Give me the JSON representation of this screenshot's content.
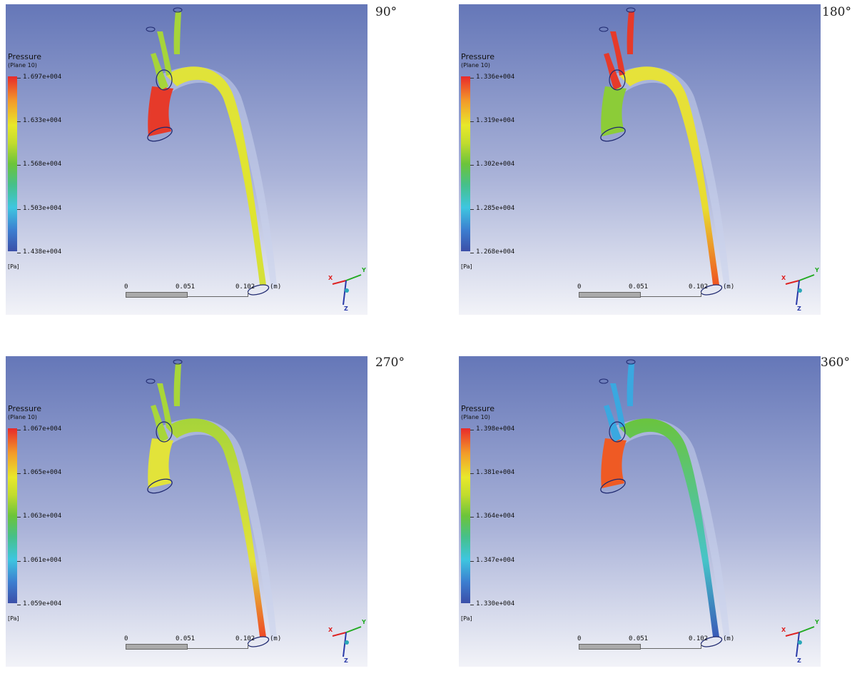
{
  "panels": [
    {
      "angle": "90°",
      "legend": {
        "title": "Pressure",
        "subtitle": "(Plane 10)",
        "unit": "[Pa]",
        "ticks": [
          "1.697e+004",
          "1.633e+004",
          "1.568e+004",
          "1.503e+004",
          "1.438e+004"
        ]
      },
      "scale": {
        "labels": [
          "0",
          "0.051",
          "0.102",
          "(m)"
        ]
      },
      "triad": {
        "x": "X",
        "y": "Y",
        "z": "Z"
      },
      "colors": {
        "top": "#a6d43a",
        "arch": "#e0e33a",
        "inlet": "#e63a2a",
        "desc": "#e0e42e",
        "tip": "#d4e03a"
      }
    },
    {
      "angle": "180°",
      "legend": {
        "title": "Pressure",
        "subtitle": "(Plane 10)",
        "unit": "[Pa]",
        "ticks": [
          "1.336e+004",
          "1.319e+004",
          "1.302e+004",
          "1.285e+004",
          "1.268e+004"
        ]
      },
      "scale": {
        "labels": [
          "0",
          "0.051",
          "0.102",
          "(m)"
        ]
      },
      "triad": {
        "x": "X",
        "y": "Y",
        "z": "Z"
      },
      "colors": {
        "top": "#e63a2a",
        "arch": "#e6e23a",
        "inlet": "#8ccc38",
        "desc": "#e8dc30",
        "tip": "#ef5522"
      }
    },
    {
      "angle": "270°",
      "legend": {
        "title": "Pressure",
        "subtitle": "(Plane 10)",
        "unit": "[Pa]",
        "ticks": [
          "1.067e+004",
          "1.065e+004",
          "1.063e+004",
          "1.061e+004",
          "1.059e+004"
        ]
      },
      "scale": {
        "labels": [
          "0",
          "0.051",
          "0.102",
          "(m)"
        ]
      },
      "triad": {
        "x": "X",
        "y": "Y",
        "z": "Z"
      },
      "colors": {
        "top": "#a8d63a",
        "arch": "#a6d43a",
        "inlet": "#e2e33a",
        "desc": "#e4e33a",
        "tip": "#ee4a26"
      }
    },
    {
      "angle": "360°",
      "legend": {
        "title": "Pressure",
        "subtitle": "(Plane 10)",
        "unit": "[Pa]",
        "ticks": [
          "1.398e+004",
          "1.381e+004",
          "1.364e+004",
          "1.347e+004",
          "1.330e+004"
        ]
      },
      "scale": {
        "labels": [
          "0",
          "0.051",
          "0.102",
          "(m)"
        ]
      },
      "triad": {
        "x": "X",
        "y": "Y",
        "z": "Z"
      },
      "colors": {
        "top": "#3aa8e0",
        "arch": "#6ac43e",
        "inlet": "#ef5a24",
        "desc": "#46c4c8",
        "tip": "#3a5cb8"
      }
    }
  ]
}
